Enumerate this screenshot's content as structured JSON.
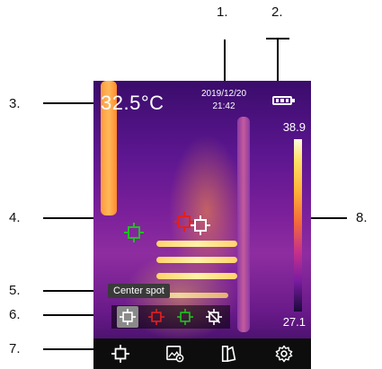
{
  "callouts": [
    {
      "id": "1",
      "label": "1."
    },
    {
      "id": "2",
      "label": "2."
    },
    {
      "id": "3",
      "label": "3."
    },
    {
      "id": "4",
      "label": "4."
    },
    {
      "id": "5",
      "label": "5."
    },
    {
      "id": "6",
      "label": "6."
    },
    {
      "id": "7",
      "label": "7."
    },
    {
      "id": "8",
      "label": "8."
    }
  ],
  "screen": {
    "temperature": "32.5°C",
    "date": "2019/12/20",
    "time": "21:42",
    "battery_icon": "battery-full-icon",
    "scale_max": "38.9",
    "scale_min": "27.1",
    "tooltip": "Center spot"
  },
  "spot_tools": [
    {
      "name": "center-spot",
      "icon": "crosshair-square-icon",
      "color": "#ffffff",
      "selected": true
    },
    {
      "name": "hot-spot",
      "icon": "crosshair-square-icon",
      "color": "#e02020",
      "selected": false
    },
    {
      "name": "cold-spot",
      "icon": "crosshair-square-icon",
      "color": "#20c020",
      "selected": false
    },
    {
      "name": "spot-off",
      "icon": "crosshair-square-off-icon",
      "color": "#ffffff",
      "selected": false
    }
  ],
  "bottom_bar": [
    {
      "name": "measure-spot",
      "icon": "crosshair-square-icon"
    },
    {
      "name": "image-settings",
      "icon": "image-gear-icon"
    },
    {
      "name": "palette",
      "icon": "palette-icon"
    },
    {
      "name": "settings",
      "icon": "gear-icon"
    }
  ],
  "colors": {
    "screen_bg_top": "#3a0c6b",
    "palette_hot": "#fffbe0",
    "palette_cold": "#1a0a3a",
    "hot_marker": "#e02020",
    "cold_marker": "#20c020",
    "center_marker": "#ffffff"
  }
}
